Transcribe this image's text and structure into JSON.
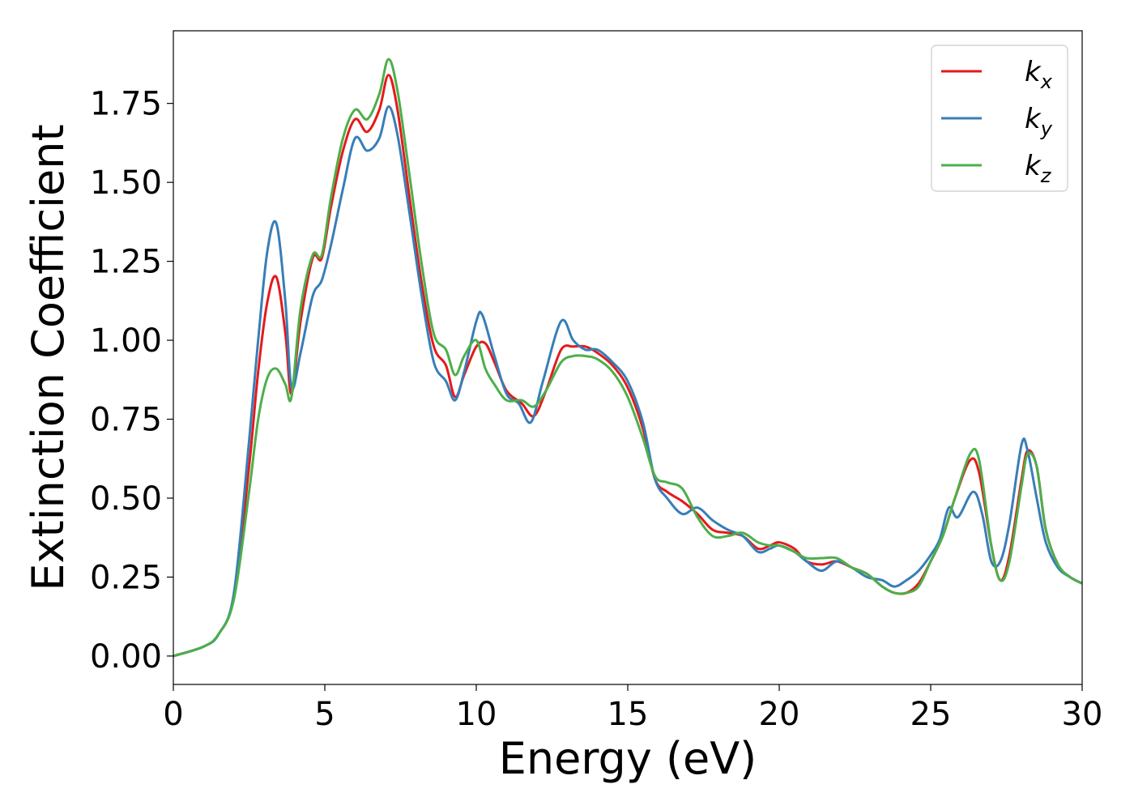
{
  "chart_data": {
    "type": "line",
    "xlabel": "Energy (eV)",
    "ylabel": "Extinction Coefficient",
    "xlim": [
      0,
      30
    ],
    "ylim": [
      -0.09,
      1.98
    ],
    "xticks": [
      0,
      5,
      10,
      15,
      20,
      25,
      30
    ],
    "xtick_labels": [
      "0",
      "5",
      "10",
      "15",
      "20",
      "25",
      "30"
    ],
    "yticks": [
      0.0,
      0.25,
      0.5,
      0.75,
      1.0,
      1.25,
      1.5,
      1.75
    ],
    "ytick_labels": [
      "0.00",
      "0.25",
      "0.50",
      "0.75",
      "1.00",
      "1.25",
      "1.50",
      "1.75"
    ],
    "grid": false,
    "legend_position": "top-right",
    "series": [
      {
        "name": "k_x",
        "base": "k",
        "sub": "x",
        "color": "#e41a1c",
        "x": [
          0,
          1,
          1.5,
          2,
          2.5,
          2.8,
          3.1,
          3.4,
          3.7,
          3.9,
          4.2,
          4.6,
          4.9,
          5.2,
          5.6,
          6.0,
          6.4,
          6.8,
          7.1,
          7.4,
          7.8,
          8.2,
          8.6,
          9.0,
          9.3,
          9.6,
          10.0,
          10.3,
          10.6,
          11.0,
          11.5,
          11.9,
          12.3,
          12.8,
          13.2,
          13.6,
          14.0,
          14.5,
          15.0,
          15.5,
          15.9,
          16.3,
          16.8,
          17.3,
          17.8,
          18.3,
          18.8,
          19.3,
          19.7,
          20.0,
          20.5,
          20.9,
          21.4,
          21.9,
          22.4,
          22.9,
          23.4,
          23.8,
          24.2,
          24.6,
          25.0,
          25.4,
          25.8,
          26.3,
          26.6,
          27.0,
          27.3,
          27.6,
          28.0,
          28.2,
          28.5,
          28.8,
          29.2,
          29.6,
          30.0
        ],
        "y": [
          0.0,
          0.03,
          0.07,
          0.19,
          0.6,
          0.9,
          1.12,
          1.2,
          1.02,
          0.83,
          1.06,
          1.26,
          1.26,
          1.42,
          1.6,
          1.7,
          1.66,
          1.73,
          1.84,
          1.73,
          1.45,
          1.18,
          0.98,
          0.92,
          0.82,
          0.89,
          0.98,
          0.99,
          0.93,
          0.84,
          0.8,
          0.76,
          0.84,
          0.97,
          0.98,
          0.98,
          0.96,
          0.92,
          0.85,
          0.72,
          0.56,
          0.52,
          0.49,
          0.45,
          0.4,
          0.39,
          0.38,
          0.34,
          0.35,
          0.36,
          0.34,
          0.3,
          0.29,
          0.3,
          0.28,
          0.26,
          0.22,
          0.2,
          0.2,
          0.23,
          0.3,
          0.38,
          0.5,
          0.62,
          0.58,
          0.35,
          0.24,
          0.32,
          0.56,
          0.65,
          0.6,
          0.4,
          0.29,
          0.25,
          0.23
        ]
      },
      {
        "name": "k_y",
        "base": "k",
        "sub": "y",
        "color": "#377eb8",
        "x": [
          0,
          1,
          1.5,
          2,
          2.5,
          2.8,
          3.1,
          3.4,
          3.7,
          3.9,
          4.2,
          4.6,
          4.9,
          5.2,
          5.6,
          6.0,
          6.4,
          6.8,
          7.1,
          7.4,
          7.8,
          8.2,
          8.6,
          9.0,
          9.3,
          9.6,
          10.0,
          10.2,
          10.6,
          11.0,
          11.4,
          11.8,
          12.2,
          12.8,
          13.2,
          13.6,
          14.0,
          14.5,
          15.0,
          15.5,
          15.9,
          16.3,
          16.8,
          17.3,
          17.8,
          18.3,
          18.8,
          19.3,
          19.7,
          20.0,
          20.5,
          20.9,
          21.4,
          21.9,
          22.4,
          22.9,
          23.4,
          23.8,
          24.2,
          24.6,
          25.0,
          25.3,
          25.6,
          25.9,
          26.4,
          26.7,
          27.0,
          27.3,
          27.6,
          28.0,
          28.2,
          28.5,
          28.8,
          29.2,
          29.6,
          30.0
        ],
        "y": [
          0.0,
          0.03,
          0.07,
          0.2,
          0.68,
          1.0,
          1.28,
          1.37,
          1.12,
          0.85,
          0.96,
          1.14,
          1.19,
          1.3,
          1.48,
          1.64,
          1.6,
          1.64,
          1.74,
          1.65,
          1.4,
          1.14,
          0.93,
          0.87,
          0.81,
          0.9,
          1.06,
          1.08,
          0.95,
          0.83,
          0.8,
          0.74,
          0.87,
          1.06,
          1.0,
          0.97,
          0.97,
          0.93,
          0.87,
          0.74,
          0.56,
          0.5,
          0.45,
          0.47,
          0.43,
          0.4,
          0.38,
          0.33,
          0.34,
          0.35,
          0.33,
          0.3,
          0.27,
          0.3,
          0.28,
          0.25,
          0.24,
          0.22,
          0.24,
          0.27,
          0.32,
          0.37,
          0.47,
          0.44,
          0.52,
          0.45,
          0.3,
          0.3,
          0.42,
          0.67,
          0.65,
          0.5,
          0.36,
          0.28,
          0.25,
          0.23
        ]
      },
      {
        "name": "k_z",
        "base": "k",
        "sub": "z",
        "color": "#4daf4a",
        "x": [
          0,
          1,
          1.5,
          2,
          2.5,
          2.8,
          3.1,
          3.4,
          3.7,
          3.9,
          4.2,
          4.6,
          4.9,
          5.2,
          5.6,
          6.0,
          6.4,
          6.8,
          7.1,
          7.4,
          7.8,
          8.2,
          8.6,
          9.0,
          9.3,
          9.6,
          10.0,
          10.3,
          10.6,
          11.0,
          11.5,
          11.9,
          12.3,
          12.8,
          13.2,
          13.6,
          14.0,
          14.5,
          15.0,
          15.5,
          15.9,
          16.3,
          16.8,
          17.3,
          17.8,
          18.3,
          18.8,
          19.3,
          19.7,
          20.0,
          20.5,
          20.9,
          21.4,
          21.9,
          22.4,
          22.9,
          23.4,
          23.8,
          24.2,
          24.6,
          25.0,
          25.4,
          25.8,
          26.3,
          26.6,
          27.0,
          27.3,
          27.6,
          28.0,
          28.2,
          28.5,
          28.8,
          29.2,
          29.6,
          30.0
        ],
        "y": [
          0.0,
          0.03,
          0.07,
          0.18,
          0.52,
          0.75,
          0.88,
          0.91,
          0.86,
          0.82,
          1.1,
          1.27,
          1.27,
          1.45,
          1.64,
          1.73,
          1.7,
          1.78,
          1.89,
          1.79,
          1.52,
          1.24,
          1.02,
          0.97,
          0.89,
          0.95,
          1.0,
          0.91,
          0.86,
          0.81,
          0.81,
          0.79,
          0.84,
          0.93,
          0.95,
          0.95,
          0.94,
          0.9,
          0.82,
          0.69,
          0.57,
          0.55,
          0.53,
          0.44,
          0.38,
          0.38,
          0.39,
          0.36,
          0.35,
          0.35,
          0.33,
          0.31,
          0.31,
          0.31,
          0.28,
          0.26,
          0.22,
          0.2,
          0.2,
          0.22,
          0.3,
          0.38,
          0.5,
          0.64,
          0.62,
          0.35,
          0.24,
          0.3,
          0.54,
          0.64,
          0.6,
          0.4,
          0.29,
          0.25,
          0.23
        ]
      }
    ]
  }
}
